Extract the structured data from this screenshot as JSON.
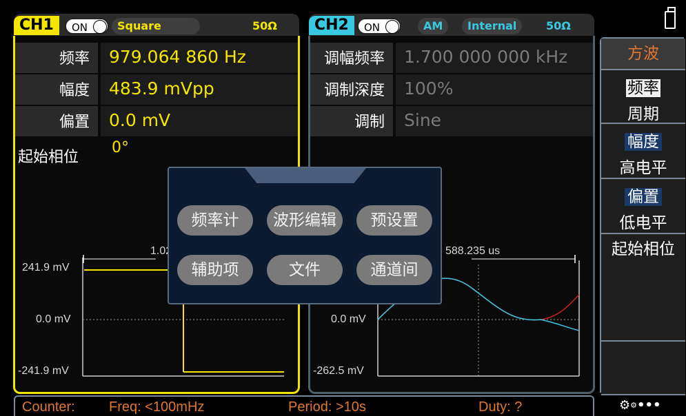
{
  "ch1": {
    "name": "CH1",
    "toggle": "ON",
    "waveform": "Square",
    "impedance": "50Ω",
    "params": [
      {
        "label": "频率",
        "value": "979.064 860 Hz"
      },
      {
        "label": "幅度",
        "value": "483.9 mVpp"
      },
      {
        "label": "偏置",
        "value": "0.0 mV"
      }
    ],
    "phase_label": "起始相位",
    "phase_value": "0°",
    "plot": {
      "ymax": "241.9 mV",
      "yzero": "0.0 mV",
      "ymin": "-241.9 mV",
      "period_label": "1.02"
    }
  },
  "ch2": {
    "name": "CH2",
    "toggle": "ON",
    "mod_type": "AM",
    "source": "Internal",
    "impedance": "50Ω",
    "params": [
      {
        "label": "调幅频率",
        "value": "1.700 000 000 kHz"
      },
      {
        "label": "调制深度",
        "value": "100%"
      },
      {
        "label": "调制",
        "value": "Sine"
      }
    ],
    "plot": {
      "yzero": "0.0 mV",
      "ymin": "-262.5 mV",
      "period_label": "588.235 us"
    }
  },
  "menu": {
    "title": "方波",
    "items": [
      {
        "top": "频率",
        "bottom": "周期"
      },
      {
        "top": "幅度",
        "bottom": "高电平"
      },
      {
        "top": "偏置",
        "bottom": "低电平"
      },
      {
        "top": "起始相位",
        "bottom": ""
      }
    ],
    "settings_text": "•••"
  },
  "popup": {
    "buttons": [
      "频率计",
      "波形编辑",
      "预设置",
      "辅助项",
      "文件",
      "通道间"
    ]
  },
  "status": {
    "counter": "Counter:",
    "freq": "Freq: <100mHz",
    "period": "Period: >10s",
    "duty": "Duty: ?"
  },
  "colors": {
    "ch1": "#f5e600",
    "ch2": "#38c8e0",
    "menu_title": "#e07830",
    "status": "#e07830"
  }
}
